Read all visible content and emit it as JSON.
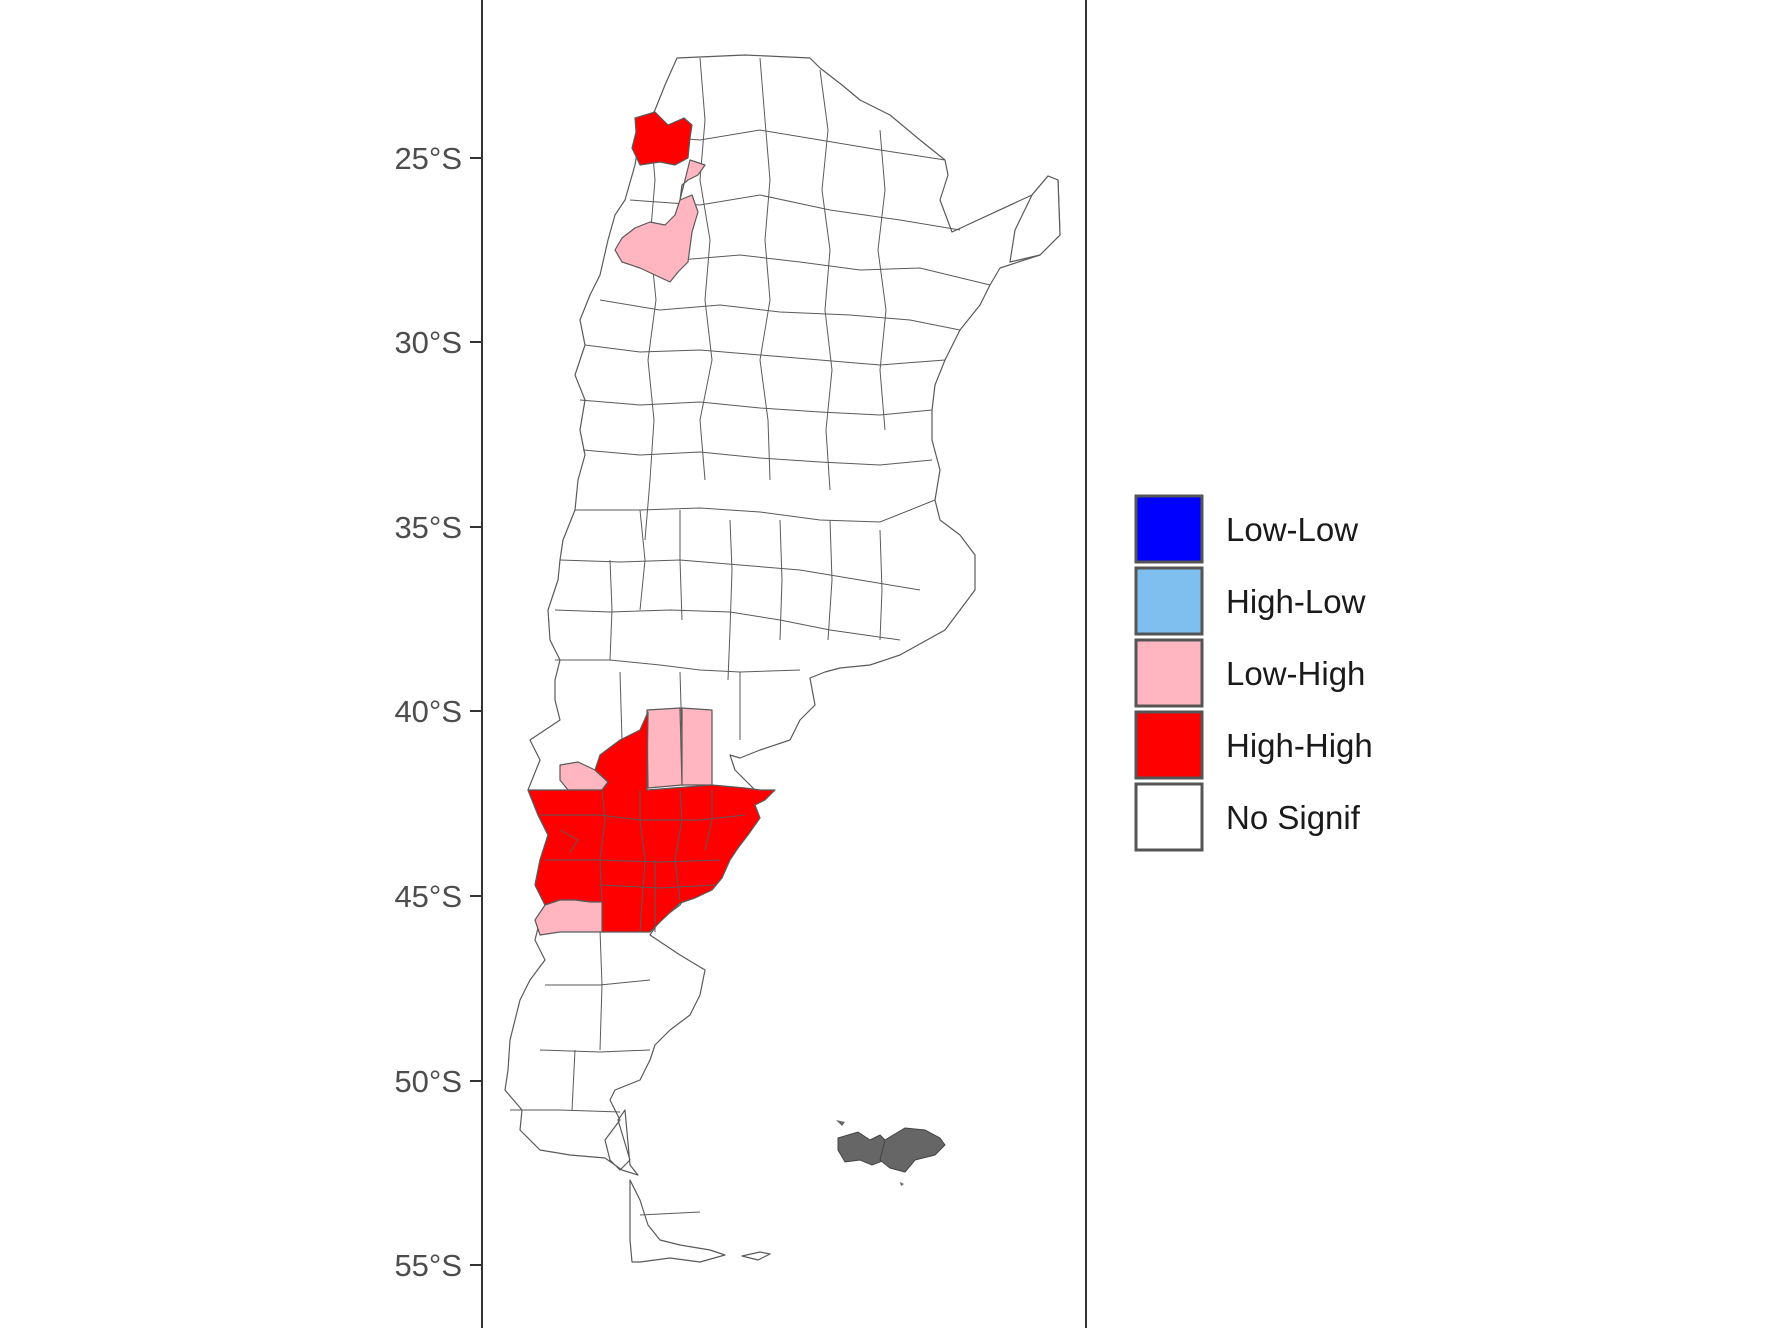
{
  "map": {
    "y_axis": {
      "ticks": [
        "25°S",
        "30°S",
        "35°S",
        "40°S",
        "45°S",
        "50°S",
        "55°S"
      ]
    },
    "background": "#ffffff",
    "border_color": "#333333",
    "boundary_color": "#5a5a5a"
  },
  "legend": {
    "placement": "right",
    "items": [
      {
        "label": "Low-Low",
        "color": "#0000ff"
      },
      {
        "label": "High-Low",
        "color": "#7fbfef"
      },
      {
        "label": "Low-High",
        "color": "#ffb6c1"
      },
      {
        "label": "High-High",
        "color": "#ff0000"
      },
      {
        "label": "No Signif",
        "color": "#ffffff"
      }
    ]
  },
  "regions": {
    "high_high_color": "#ff0000",
    "low_high_color": "#ffb6c1",
    "no_signif_color": "#ffffff",
    "islands_color": "#666666"
  }
}
